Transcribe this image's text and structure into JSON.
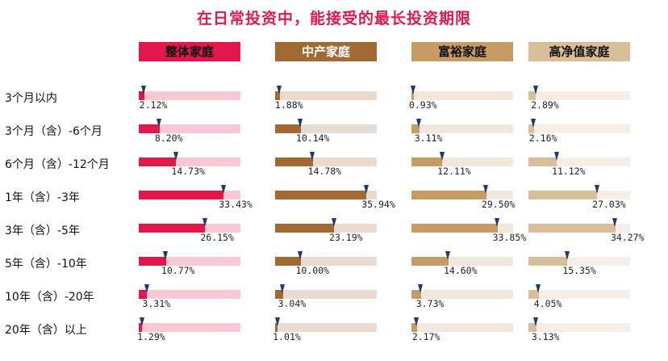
{
  "chart_data": {
    "type": "bar",
    "title": "在日常投资中，能接受的最长投资期限",
    "categories": [
      "3个月以内",
      "3个月（含）-6个月",
      "6个月（含）-12个月",
      "1年（含）-3年",
      "3年（含）-5年",
      "5年（含）-10年",
      "10年（含）-20年",
      "20年（含）以上"
    ],
    "series": [
      {
        "name": "整体家庭",
        "values": [
          2.12,
          8.2,
          14.73,
          33.43,
          26.15,
          10.77,
          3.31,
          1.29
        ],
        "labels": [
          "2.12%",
          "8.20%",
          "14.73%",
          "33.43%",
          "26.15%",
          "10.77%",
          "3.31%",
          "1.29%"
        ],
        "color": "#e0194a",
        "track_color": "#f9c8d5",
        "header_text_color": "#111111"
      },
      {
        "name": "中产家庭",
        "values": [
          1.88,
          10.14,
          14.78,
          35.94,
          23.19,
          10.0,
          3.04,
          1.01
        ],
        "labels": [
          "1.88%",
          "10.14%",
          "14.78%",
          "35.94%",
          "23.19%",
          "10.00%",
          "3.04%",
          "1.01%"
        ],
        "color": "#a16a34",
        "track_color": "#eadbd0",
        "header_text_color": "#ffffff"
      },
      {
        "name": "富裕家庭",
        "values": [
          0.93,
          3.11,
          12.11,
          29.5,
          33.85,
          14.6,
          3.73,
          2.17
        ],
        "labels": [
          "0.93%",
          "3.11%",
          "12.11%",
          "29.50%",
          "33.85%",
          "14.60%",
          "3.73%",
          "2.17%"
        ],
        "color": "#c59c66",
        "track_color": "#f1e7dc",
        "header_text_color": "#111111"
      },
      {
        "name": "高净值家庭",
        "values": [
          2.89,
          2.16,
          11.12,
          27.03,
          34.27,
          15.35,
          4.05,
          3.13
        ],
        "labels": [
          "2.89%",
          "2.16%",
          "11.12%",
          "27.03%",
          "34.27%",
          "15.35%",
          "4.05%",
          "3.13%"
        ],
        "color": "#d9bf99",
        "track_color": "#f6eee6",
        "header_text_color": "#111111"
      }
    ],
    "value_max": 100,
    "title_color": "#e0194a",
    "marker_color": "#1f3b6b"
  }
}
